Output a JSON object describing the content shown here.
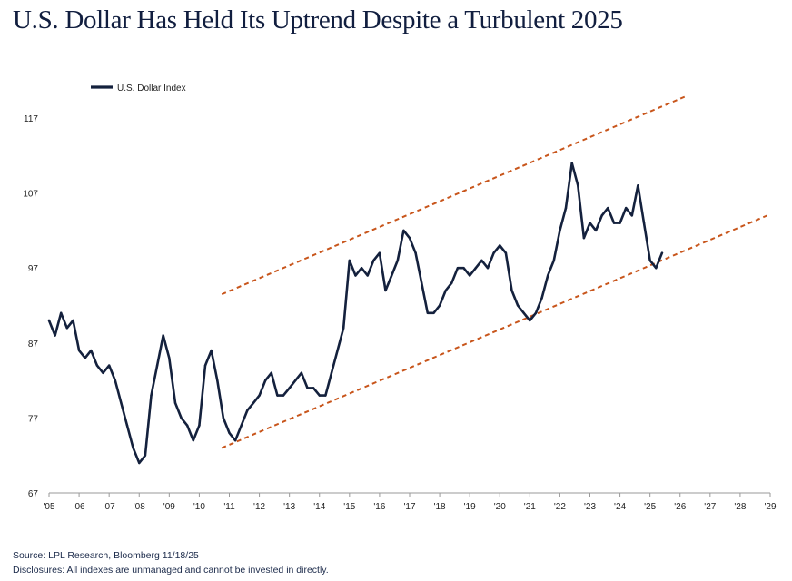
{
  "title": "U.S. Dollar Has Held Its Uptrend Despite a Turbulent 2025",
  "source": "Source: LPL Research, Bloomberg 11/18/25",
  "disclosure": "Disclosures: All indexes are unmanaged and cannot be invested in directly.",
  "colors": {
    "series": "#14213d",
    "trend": "#c8551b",
    "axis": "#9a9a9a"
  },
  "chart_data": {
    "type": "line",
    "title": "U.S. Dollar Has Held Its Uptrend Despite a Turbulent 2025",
    "xlabel": "",
    "ylabel": "",
    "xlim": [
      2005,
      2029
    ],
    "ylim": [
      67,
      117
    ],
    "x_ticks": [
      "'05",
      "'06",
      "'07",
      "'08",
      "'09",
      "'10",
      "'11",
      "'12",
      "'13",
      "'14",
      "'15",
      "'16",
      "'17",
      "'18",
      "'19",
      "'20",
      "'21",
      "'22",
      "'23",
      "'24",
      "'25",
      "'26",
      "'27",
      "'28",
      "'29"
    ],
    "y_ticks": [
      67,
      77,
      87,
      97,
      107,
      117
    ],
    "grid": false,
    "legend_position": "top-left",
    "series": [
      {
        "name": "U.S. Dollar Index",
        "x": [
          2005.0,
          2005.2,
          2005.4,
          2005.6,
          2005.8,
          2006.0,
          2006.2,
          2006.4,
          2006.6,
          2006.8,
          2007.0,
          2007.2,
          2007.4,
          2007.6,
          2007.8,
          2008.0,
          2008.2,
          2008.4,
          2008.6,
          2008.8,
          2009.0,
          2009.2,
          2009.4,
          2009.6,
          2009.8,
          2010.0,
          2010.2,
          2010.4,
          2010.6,
          2010.8,
          2011.0,
          2011.2,
          2011.4,
          2011.6,
          2011.8,
          2012.0,
          2012.2,
          2012.4,
          2012.6,
          2012.8,
          2013.0,
          2013.2,
          2013.4,
          2013.6,
          2013.8,
          2014.0,
          2014.2,
          2014.4,
          2014.6,
          2014.8,
          2015.0,
          2015.2,
          2015.4,
          2015.6,
          2015.8,
          2016.0,
          2016.2,
          2016.4,
          2016.6,
          2016.8,
          2017.0,
          2017.2,
          2017.4,
          2017.6,
          2017.8,
          2018.0,
          2018.2,
          2018.4,
          2018.6,
          2018.8,
          2019.0,
          2019.2,
          2019.4,
          2019.6,
          2019.8,
          2020.0,
          2020.2,
          2020.4,
          2020.6,
          2020.8,
          2021.0,
          2021.2,
          2021.4,
          2021.6,
          2021.8,
          2022.0,
          2022.2,
          2022.4,
          2022.6,
          2022.8,
          2023.0,
          2023.2,
          2023.4,
          2023.6,
          2023.8,
          2024.0,
          2024.2,
          2024.4,
          2024.6,
          2024.8,
          2025.0,
          2025.2,
          2025.4
        ],
        "values": [
          90,
          88,
          91,
          89,
          90,
          86,
          85,
          86,
          84,
          83,
          84,
          82,
          79,
          76,
          73,
          71,
          72,
          80,
          84,
          88,
          85,
          79,
          77,
          76,
          74,
          76,
          84,
          86,
          82,
          77,
          75,
          74,
          76,
          78,
          79,
          80,
          82,
          83,
          80,
          80,
          81,
          82,
          83,
          81,
          81,
          80,
          80,
          83,
          86,
          89,
          98,
          96,
          97,
          96,
          98,
          99,
          94,
          96,
          98,
          102,
          101,
          99,
          95,
          91,
          91,
          92,
          94,
          95,
          97,
          97,
          96,
          97,
          98,
          97,
          99,
          100,
          99,
          94,
          92,
          91,
          90,
          91,
          93,
          96,
          98,
          102,
          105,
          111,
          108,
          101,
          103,
          102,
          104,
          105,
          103,
          103,
          105,
          104,
          108,
          103,
          98,
          97,
          99
        ]
      }
    ],
    "trend_lines": [
      {
        "x": [
          2010.75,
          2026.25
        ],
        "y": [
          93.5,
          120
        ]
      },
      {
        "x": [
          2010.75,
          2028.9
        ],
        "y": [
          73,
          104
        ]
      }
    ]
  }
}
